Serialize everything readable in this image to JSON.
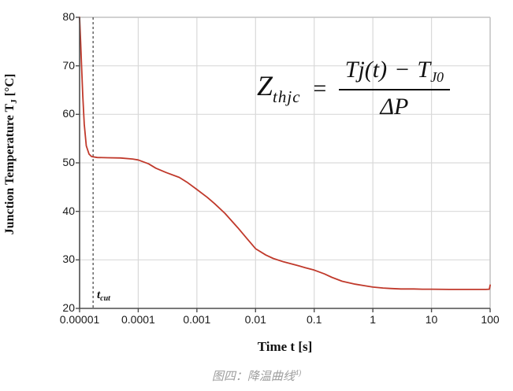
{
  "figure": {
    "caption": {
      "text": "图四：降温曲线",
      "sup": "4)"
    }
  },
  "formula": {
    "lhs": "Z",
    "lhs_sub": "thjc",
    "eq": "=",
    "num_term1": "Tj(t)",
    "num_op": "−",
    "num_term2": "T",
    "num_term2_sub": "J0",
    "den": "ΔP"
  },
  "axes": {
    "x_title": "Time t [s]",
    "y_title_prefix": "Junction Temperature T",
    "y_title_sub": "J",
    "y_title_suffix": " [°C]"
  },
  "annotations": {
    "tcut_base": "t",
    "tcut_sub": "cut"
  },
  "colors": {
    "curve": "#c0392b",
    "grid": "#d9d9d9",
    "axis": "#4d4d4d",
    "frame": "#c2c2c2",
    "dashed_line": "#4d4d4d",
    "caption": "#9e9e9e",
    "text": "#1a1a1a"
  },
  "chart_data": {
    "type": "line",
    "title": "",
    "xlabel": "Time t [s]",
    "ylabel": "Junction Temperature TJ [°C]",
    "x_scale": "log",
    "y_scale": "linear",
    "xlim": [
      1e-05,
      100
    ],
    "ylim": [
      20,
      80
    ],
    "grid": true,
    "legend": "none",
    "x_ticks": [
      {
        "value": 1e-05,
        "label": "0.00001"
      },
      {
        "value": 0.0001,
        "label": "0.0001"
      },
      {
        "value": 0.001,
        "label": "0.001"
      },
      {
        "value": 0.01,
        "label": "0.01"
      },
      {
        "value": 0.1,
        "label": "0.1"
      },
      {
        "value": 1,
        "label": "1"
      },
      {
        "value": 10,
        "label": "10"
      },
      {
        "value": 100,
        "label": "100"
      }
    ],
    "y_ticks": [
      {
        "value": 80,
        "label": "80"
      },
      {
        "value": 70,
        "label": "70"
      },
      {
        "value": 60,
        "label": "60"
      },
      {
        "value": 50,
        "label": "50"
      },
      {
        "value": 40,
        "label": "40"
      },
      {
        "value": 30,
        "label": "30"
      },
      {
        "value": 20,
        "label": "20"
      }
    ],
    "reference_lines": [
      {
        "name": "t_cut",
        "orientation": "vertical",
        "x": 1.7e-05,
        "style": "dashed",
        "color": "#4d4d4d",
        "label": "tcut"
      }
    ],
    "series": [
      {
        "name": "junction-temperature-cooling-curve",
        "color": "#c0392b",
        "points": [
          [
            1e-05,
            80
          ],
          [
            1.04e-05,
            75
          ],
          [
            1.08e-05,
            70
          ],
          [
            1.13e-05,
            64
          ],
          [
            1.2e-05,
            58
          ],
          [
            1.3e-05,
            53.5
          ],
          [
            1.45e-05,
            51.8
          ],
          [
            1.6e-05,
            51.3
          ],
          [
            2e-05,
            51.1
          ],
          [
            3e-05,
            51.05
          ],
          [
            5e-05,
            51.0
          ],
          [
            8e-05,
            50.8
          ],
          [
            0.0001,
            50.6
          ],
          [
            0.00015,
            49.8
          ],
          [
            0.0002,
            48.9
          ],
          [
            0.0003,
            48.0
          ],
          [
            0.0005,
            47.0
          ],
          [
            0.0007,
            45.9
          ],
          [
            0.001,
            44.5
          ],
          [
            0.0015,
            42.9
          ],
          [
            0.002,
            41.6
          ],
          [
            0.003,
            39.6
          ],
          [
            0.005,
            36.6
          ],
          [
            0.007,
            34.5
          ],
          [
            0.01,
            32.3
          ],
          [
            0.015,
            31.0
          ],
          [
            0.02,
            30.3
          ],
          [
            0.03,
            29.6
          ],
          [
            0.05,
            28.9
          ],
          [
            0.07,
            28.4
          ],
          [
            0.1,
            27.9
          ],
          [
            0.15,
            27.1
          ],
          [
            0.2,
            26.4
          ],
          [
            0.3,
            25.6
          ],
          [
            0.5,
            25.0
          ],
          [
            0.7,
            24.7
          ],
          [
            1,
            24.4
          ],
          [
            1.5,
            24.2
          ],
          [
            2,
            24.1
          ],
          [
            3,
            24.0
          ],
          [
            5,
            24.0
          ],
          [
            7,
            23.95
          ],
          [
            10,
            23.95
          ],
          [
            20,
            23.9
          ],
          [
            50,
            23.9
          ],
          [
            85,
            23.9
          ],
          [
            97,
            23.95
          ],
          [
            100,
            24.8
          ]
        ]
      }
    ]
  }
}
